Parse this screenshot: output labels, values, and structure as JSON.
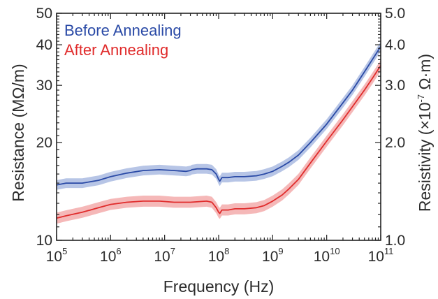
{
  "chart_data": {
    "type": "line",
    "xlabel": "Frequency (Hz)",
    "ylabel_left": "Resistance  (MΩ/m)",
    "ylabel_right_parts": {
      "before": "Resistivity (×10",
      "sup": "-7",
      "after": " Ω·m)"
    },
    "x_scale": "log",
    "y_scale": "log",
    "xlim": [
      100000,
      100000000000
    ],
    "ylim_left": [
      10,
      50
    ],
    "ylim_right": [
      1.0,
      5.0
    ],
    "x_ticks": [
      {
        "base": "10",
        "exp": "5"
      },
      {
        "base": "10",
        "exp": "6"
      },
      {
        "base": "10",
        "exp": "7"
      },
      {
        "base": "10",
        "exp": "8"
      },
      {
        "base": "10",
        "exp": "9"
      },
      {
        "base": "10",
        "exp": "10"
      },
      {
        "base": "10",
        "exp": "11"
      }
    ],
    "y_ticks_left": [
      "10",
      "20",
      "30",
      "40",
      "50"
    ],
    "y_ticks_right": [
      "1.0",
      "2.0",
      "3.0",
      "4.0",
      "5.0"
    ],
    "legend_position": "top-left",
    "grid": false,
    "series": [
      {
        "name": "Before Annealing",
        "color": "#2a4aa6",
        "band_color": "#9fb2dd",
        "band_halfwidth_factor": 1.035,
        "x": [
          100000,
          150000,
          300000,
          600000,
          1000000,
          2000000,
          4000000,
          8000000,
          15000000,
          25000000,
          30000000,
          32000000,
          40000000,
          60000000,
          75000000,
          90000000,
          100000000,
          105000000,
          115000000,
          150000000,
          200000000,
          300000000,
          500000000,
          700000000,
          1000000000,
          1500000000,
          2000000000,
          3000000000,
          5000000000,
          10000000000,
          20000000000,
          30000000000,
          50000000000,
          70000000000,
          100000000000
        ],
        "values": [
          14.8,
          15.0,
          15.0,
          15.3,
          15.7,
          16.1,
          16.4,
          16.5,
          16.4,
          16.3,
          16.4,
          16.5,
          16.6,
          16.6,
          16.5,
          16.0,
          15.4,
          15.2,
          15.6,
          15.6,
          15.7,
          15.7,
          15.8,
          16.0,
          16.3,
          16.9,
          17.4,
          18.3,
          20.0,
          22.8,
          26.5,
          29.0,
          33.0,
          36.0,
          39.5
        ]
      },
      {
        "name": "After Annealing",
        "color": "#e02b2b",
        "band_color": "#f2a0a0",
        "band_halfwidth_factor": 1.04,
        "x": [
          100000,
          150000,
          300000,
          600000,
          1000000,
          2000000,
          4000000,
          8000000,
          15000000,
          30000000,
          60000000,
          75000000,
          90000000,
          100000000,
          105000000,
          115000000,
          150000000,
          200000000,
          300000000,
          500000000,
          700000000,
          1000000000,
          1500000000,
          2000000000,
          3000000000,
          5000000000,
          10000000000,
          20000000000,
          30000000000,
          50000000000,
          70000000000,
          100000000000
        ],
        "values": [
          11.7,
          11.9,
          12.2,
          12.6,
          12.9,
          13.1,
          13.2,
          13.2,
          13.1,
          13.1,
          13.2,
          13.1,
          12.6,
          12.2,
          12.1,
          12.4,
          12.4,
          12.5,
          12.5,
          12.6,
          12.8,
          13.2,
          13.8,
          14.4,
          15.4,
          17.3,
          20.2,
          23.5,
          25.8,
          29.0,
          31.5,
          34.5
        ]
      }
    ]
  }
}
